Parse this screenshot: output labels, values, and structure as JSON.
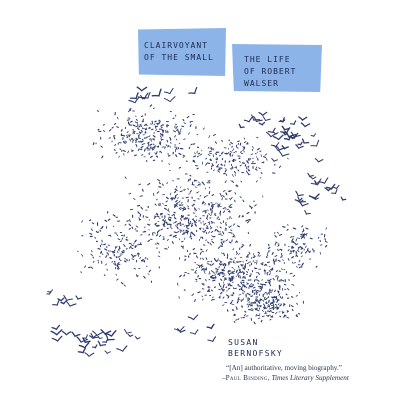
{
  "cover": {
    "title_lines": [
      "CLAIRVOYANT",
      "OF THE SMALL"
    ],
    "subtitle_lines": [
      "THE LIFE",
      "OF ROBERT",
      "WALSER"
    ],
    "author_lines": [
      "SUSAN",
      "BERNOFSKY"
    ],
    "blurb": {
      "quote": "“[An] authoritative, moving biography.”",
      "dash": "–",
      "reviewer": "Paul Binding",
      "separator": ", ",
      "publication": "Times Literary Supplement"
    }
  },
  "colors": {
    "label_blue": "#8db4e8",
    "ink": "#1c2a52",
    "bird": "#2f3a6b",
    "background": "#ffffff"
  }
}
